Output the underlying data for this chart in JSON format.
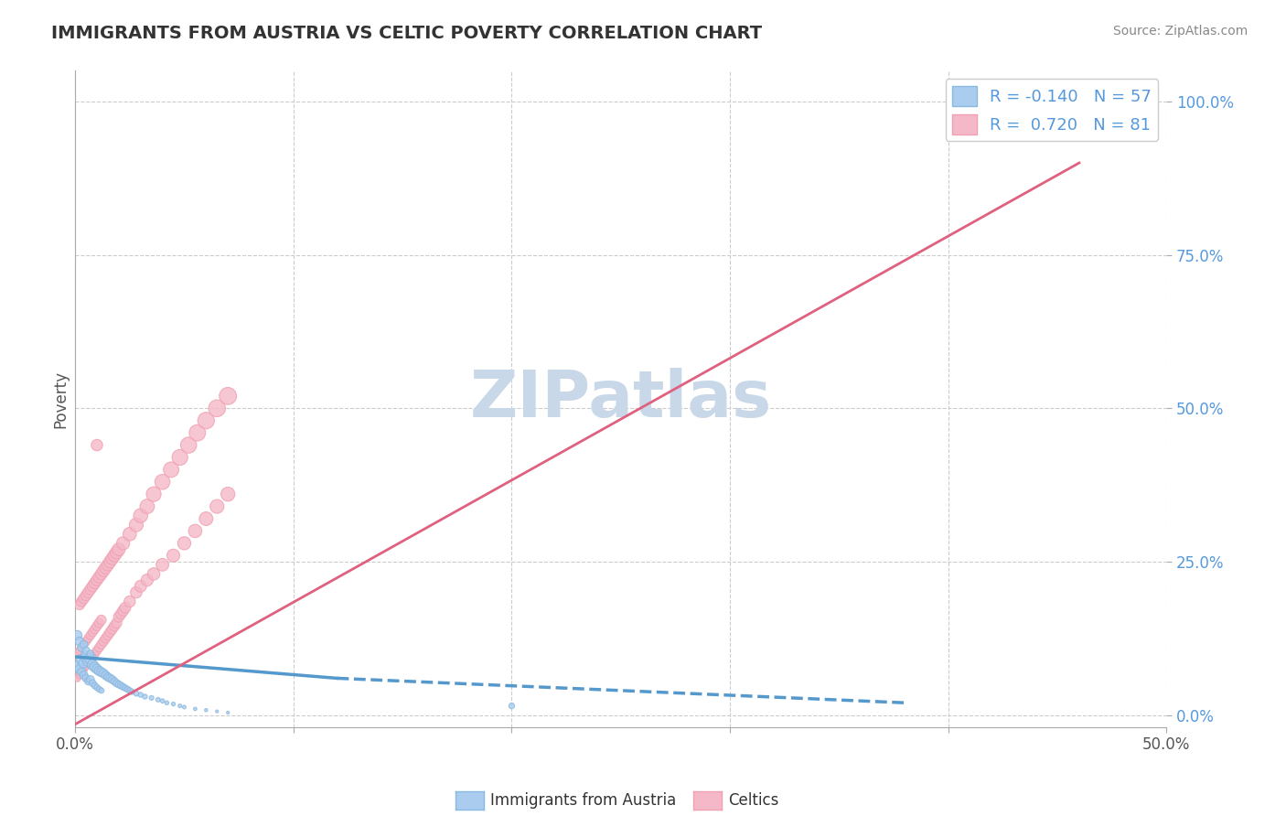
{
  "title": "IMMIGRANTS FROM AUSTRIA VS CELTIC POVERTY CORRELATION CHART",
  "source": "Source: ZipAtlas.com",
  "ylabel": "Poverty",
  "xlim": [
    0.0,
    0.5
  ],
  "ylim": [
    -0.02,
    1.05
  ],
  "yticks_right": [
    0.0,
    0.25,
    0.5,
    0.75,
    1.0
  ],
  "background_color": "#ffffff",
  "grid_color": "#cccccc",
  "title_color": "#333333",
  "watermark": "ZIPatlas",
  "watermark_color": "#c8d8e8",
  "blue_x": [
    0.001,
    0.002,
    0.003,
    0.003,
    0.004,
    0.004,
    0.005,
    0.005,
    0.006,
    0.006,
    0.007,
    0.007,
    0.008,
    0.008,
    0.009,
    0.009,
    0.01,
    0.01,
    0.011,
    0.011,
    0.012,
    0.012,
    0.013,
    0.014,
    0.015,
    0.016,
    0.017,
    0.018,
    0.019,
    0.02,
    0.021,
    0.022,
    0.023,
    0.024,
    0.025,
    0.026,
    0.028,
    0.03,
    0.032,
    0.035,
    0.038,
    0.04,
    0.042,
    0.045,
    0.048,
    0.05,
    0.055,
    0.06,
    0.065,
    0.07,
    0.001,
    0.002,
    0.003,
    0.004,
    0.005,
    0.007,
    0.2
  ],
  "blue_y": [
    0.08,
    0.075,
    0.09,
    0.07,
    0.085,
    0.065,
    0.095,
    0.06,
    0.088,
    0.055,
    0.092,
    0.058,
    0.082,
    0.052,
    0.078,
    0.048,
    0.075,
    0.045,
    0.072,
    0.042,
    0.07,
    0.04,
    0.068,
    0.065,
    0.062,
    0.06,
    0.058,
    0.055,
    0.052,
    0.05,
    0.048,
    0.046,
    0.044,
    0.042,
    0.04,
    0.038,
    0.035,
    0.033,
    0.03,
    0.028,
    0.025,
    0.023,
    0.02,
    0.018,
    0.015,
    0.013,
    0.01,
    0.008,
    0.006,
    0.004,
    0.13,
    0.12,
    0.11,
    0.115,
    0.105,
    0.1,
    0.015
  ],
  "blue_sizes": [
    60,
    50,
    70,
    45,
    65,
    40,
    75,
    35,
    72,
    32,
    78,
    38,
    68,
    28,
    62,
    25,
    58,
    22,
    55,
    20,
    52,
    18,
    48,
    45,
    42,
    40,
    38,
    35,
    32,
    30,
    28,
    26,
    24,
    22,
    20,
    18,
    16,
    15,
    14,
    13,
    12,
    11,
    10,
    9,
    8,
    8,
    7,
    6,
    5,
    5,
    55,
    48,
    42,
    38,
    35,
    30,
    20
  ],
  "pink_x": [
    0.001,
    0.001,
    0.002,
    0.002,
    0.003,
    0.003,
    0.004,
    0.004,
    0.005,
    0.005,
    0.006,
    0.006,
    0.007,
    0.007,
    0.008,
    0.008,
    0.009,
    0.009,
    0.01,
    0.01,
    0.011,
    0.011,
    0.012,
    0.012,
    0.013,
    0.014,
    0.015,
    0.016,
    0.017,
    0.018,
    0.019,
    0.02,
    0.021,
    0.022,
    0.023,
    0.025,
    0.028,
    0.03,
    0.033,
    0.036,
    0.04,
    0.045,
    0.05,
    0.055,
    0.06,
    0.065,
    0.07,
    0.002,
    0.003,
    0.004,
    0.005,
    0.006,
    0.007,
    0.008,
    0.009,
    0.01,
    0.011,
    0.012,
    0.013,
    0.014,
    0.015,
    0.016,
    0.017,
    0.018,
    0.019,
    0.02,
    0.022,
    0.025,
    0.028,
    0.03,
    0.033,
    0.036,
    0.04,
    0.044,
    0.048,
    0.052,
    0.056,
    0.06,
    0.065,
    0.07,
    0.01
  ],
  "pink_y": [
    0.06,
    0.1,
    0.065,
    0.105,
    0.07,
    0.11,
    0.075,
    0.115,
    0.08,
    0.12,
    0.085,
    0.125,
    0.09,
    0.13,
    0.095,
    0.135,
    0.1,
    0.14,
    0.105,
    0.145,
    0.11,
    0.15,
    0.115,
    0.155,
    0.12,
    0.125,
    0.13,
    0.135,
    0.14,
    0.145,
    0.15,
    0.16,
    0.165,
    0.17,
    0.175,
    0.185,
    0.2,
    0.21,
    0.22,
    0.23,
    0.245,
    0.26,
    0.28,
    0.3,
    0.32,
    0.34,
    0.36,
    0.18,
    0.185,
    0.19,
    0.195,
    0.2,
    0.205,
    0.21,
    0.215,
    0.22,
    0.225,
    0.23,
    0.235,
    0.24,
    0.245,
    0.25,
    0.255,
    0.26,
    0.265,
    0.27,
    0.28,
    0.295,
    0.31,
    0.325,
    0.34,
    0.36,
    0.38,
    0.4,
    0.42,
    0.44,
    0.46,
    0.48,
    0.5,
    0.52,
    0.44
  ],
  "pink_sizes": [
    30,
    35,
    32,
    38,
    34,
    40,
    36,
    42,
    38,
    44,
    40,
    46,
    42,
    48,
    44,
    50,
    46,
    52,
    48,
    54,
    50,
    56,
    52,
    58,
    54,
    56,
    58,
    60,
    62,
    64,
    66,
    68,
    70,
    72,
    74,
    78,
    82,
    86,
    90,
    94,
    98,
    102,
    106,
    110,
    114,
    118,
    122,
    65,
    67,
    69,
    71,
    73,
    75,
    77,
    79,
    81,
    83,
    85,
    87,
    89,
    91,
    93,
    95,
    97,
    99,
    101,
    105,
    111,
    117,
    123,
    129,
    135,
    141,
    147,
    153,
    159,
    165,
    171,
    177,
    183,
    80
  ],
  "trend_blue_x1": 0.0,
  "trend_blue_y1": 0.095,
  "trend_blue_x2": 0.12,
  "trend_blue_y2": 0.06,
  "trend_blue_x3": 0.38,
  "trend_blue_y3": 0.02,
  "trend_blue_color": "#5599cc",
  "trend_blue_lw": 2.5,
  "trend_pink_x1": 0.0,
  "trend_pink_y1": -0.015,
  "trend_pink_x2": 0.46,
  "trend_pink_y2": 0.9,
  "trend_pink_color": "#e06080",
  "trend_pink_lw": 2.0,
  "legend_entries": [
    {
      "label_r": "R = -0.140",
      "label_n": "N = 57",
      "color": "#aaccee",
      "edge": "#89b8e0"
    },
    {
      "label_r": "R =  0.720",
      "label_n": "N = 81",
      "color": "#f4b8c8",
      "edge": "#f0a0b0"
    }
  ]
}
